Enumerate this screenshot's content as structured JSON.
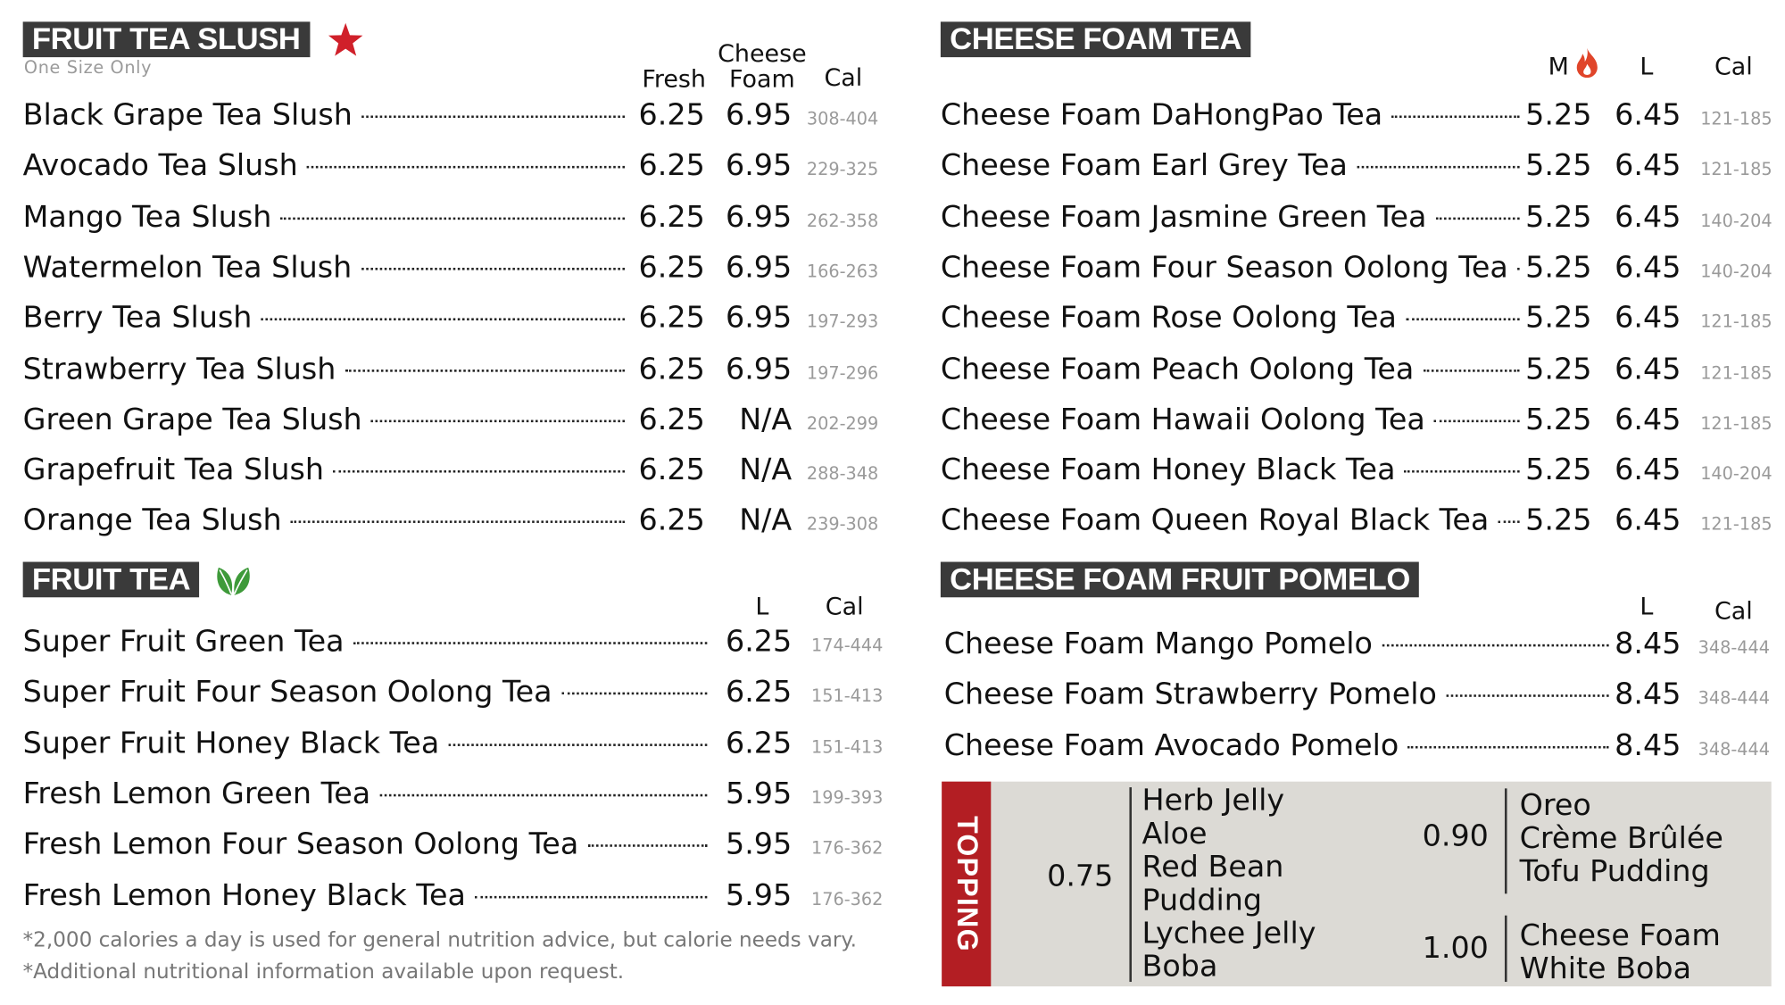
{
  "fruit_tea_slush": {
    "title": "FRUIT TEA SLUSH",
    "subtitle": "One Size Only",
    "star_color": "#d0202a",
    "col_fresh": "Fresh",
    "col_cheese_1": "Cheese",
    "col_cheese_2": "Foam",
    "col_cal": "Cal",
    "items": [
      {
        "name": "Black Grape Tea Slush",
        "fresh": "6.25",
        "cheese": "6.95",
        "cal": "308-404"
      },
      {
        "name": "Avocado Tea Slush",
        "fresh": "6.25",
        "cheese": "6.95",
        "cal": "229-325"
      },
      {
        "name": "Mango Tea Slush",
        "fresh": "6.25",
        "cheese": "6.95",
        "cal": "262-358"
      },
      {
        "name": "Watermelon Tea Slush",
        "fresh": "6.25",
        "cheese": "6.95",
        "cal": "166-263"
      },
      {
        "name": "Berry Tea Slush",
        "fresh": "6.25",
        "cheese": "6.95",
        "cal": "197-293"
      },
      {
        "name": "Strawberry Tea Slush",
        "fresh": "6.25",
        "cheese": "6.95",
        "cal": "197-296"
      },
      {
        "name": "Green Grape Tea Slush",
        "fresh": "6.25",
        "cheese": "N/A",
        "cal": "202-299"
      },
      {
        "name": "Grapefruit Tea Slush",
        "fresh": "6.25",
        "cheese": "N/A",
        "cal": "288-348"
      },
      {
        "name": "Orange Tea Slush",
        "fresh": "6.25",
        "cheese": "N/A",
        "cal": "239-308"
      }
    ]
  },
  "fruit_tea": {
    "title": "FRUIT TEA",
    "leaf_color": "#3e9a3a",
    "col_l": "L",
    "col_cal": "Cal",
    "items": [
      {
        "name": "Super Fruit Green Tea",
        "l": "6.25",
        "cal": "174-444"
      },
      {
        "name": "Super Fruit Four Season Oolong Tea",
        "l": "6.25",
        "cal": "151-413"
      },
      {
        "name": "Super Fruit Honey Black Tea",
        "l": "6.25",
        "cal": "151-413"
      },
      {
        "name": "Fresh Lemon Green Tea",
        "l": "5.95",
        "cal": "199-393"
      },
      {
        "name": "Fresh Lemon Four Season Oolong Tea",
        "l": "5.95",
        "cal": "176-362"
      },
      {
        "name": "Fresh Lemon Honey Black Tea",
        "l": "5.95",
        "cal": "176-362"
      }
    ]
  },
  "footnotes": [
    "*2,000 calories a day is used for general nutrition advice, but calorie needs vary.",
    "*Additional nutritional information available upon request."
  ],
  "cheese_foam_tea": {
    "title": "CHEESE FOAM TEA",
    "col_m": "M",
    "col_l": "L",
    "col_cal": "Cal",
    "flame_color": "#e0452a",
    "items": [
      {
        "name": "Cheese Foam DaHongPao Tea",
        "m": "5.25",
        "l": "6.45",
        "cal": "121-185"
      },
      {
        "name": "Cheese Foam Earl Grey Tea",
        "m": "5.25",
        "l": "6.45",
        "cal": "121-185"
      },
      {
        "name": "Cheese Foam Jasmine Green Tea",
        "m": "5.25",
        "l": "6.45",
        "cal": "140-204"
      },
      {
        "name": "Cheese Foam Four Season Oolong Tea",
        "m": "5.25",
        "l": "6.45",
        "cal": "140-204"
      },
      {
        "name": "Cheese Foam Rose Oolong Tea",
        "m": "5.25",
        "l": "6.45",
        "cal": "121-185"
      },
      {
        "name": "Cheese Foam Peach Oolong Tea",
        "m": "5.25",
        "l": "6.45",
        "cal": "121-185"
      },
      {
        "name": "Cheese Foam Hawaii Oolong Tea",
        "m": "5.25",
        "l": "6.45",
        "cal": "121-185"
      },
      {
        "name": "Cheese Foam Honey Black Tea",
        "m": "5.25",
        "l": "6.45",
        "cal": "140-204"
      },
      {
        "name": "Cheese Foam Queen Royal Black Tea",
        "m": "5.25",
        "l": "6.45",
        "cal": "121-185"
      }
    ]
  },
  "cheese_foam_pomelo": {
    "title": "CHEESE FOAM FRUIT POMELO",
    "col_l": "L",
    "col_cal": "Cal",
    "items": [
      {
        "name": "Cheese Foam Mango Pomelo",
        "l": "8.45",
        "cal": "348-444"
      },
      {
        "name": "Cheese Foam Strawberry Pomelo",
        "l": "8.45",
        "cal": "348-444"
      },
      {
        "name": "Cheese Foam Avocado Pomelo",
        "l": "8.45",
        "cal": "348-444"
      }
    ]
  },
  "topping": {
    "title": "TOPPING",
    "accent_color": "#b31e23",
    "groups": [
      {
        "price": "0.75",
        "items": [
          "Herb Jelly",
          "Aloe",
          "Red Bean",
          "Pudding",
          "Lychee Jelly",
          "Boba"
        ]
      },
      {
        "price": "0.90",
        "items": [
          "Oreo",
          "Crème Brûlée",
          "Tofu Pudding"
        ]
      },
      {
        "price": "1.00",
        "items": [
          "Cheese Foam",
          "White Boba"
        ]
      }
    ]
  }
}
